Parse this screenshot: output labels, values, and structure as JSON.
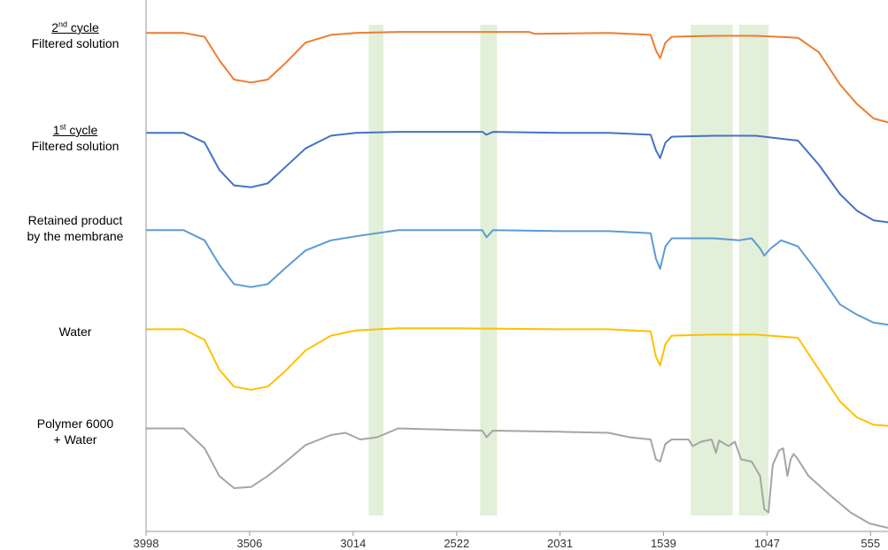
{
  "chart_data": {
    "type": "line",
    "x_ticks": [
      "3998",
      "3506",
      "3014",
      "2522",
      "2031",
      "1539",
      "1047",
      "555"
    ],
    "xlim": [
      3998,
      472
    ],
    "labels": [
      {
        "line1_num": "2",
        "line1_sup": "nd",
        "line1_rest": " cycle",
        "line2": "Filtered solution"
      },
      {
        "line1_num": "1",
        "line1_sup": "st",
        "line1_rest": " cycle",
        "line2": "Filtered solution"
      },
      {
        "line1": "Retained product",
        "line2": "by the membrane"
      },
      {
        "line1": "Water"
      },
      {
        "line1": "Polymer 6000",
        "line2": "+ Water"
      }
    ],
    "highlight_bands": [
      [
        2940,
        2870
      ],
      [
        2410,
        2330
      ],
      [
        1410,
        1210
      ],
      [
        1180,
        1040
      ]
    ],
    "highlight_color": "#e2efd9",
    "series": [
      {
        "color": "#ed7d31",
        "points": [
          [
            3998,
            0.02
          ],
          [
            3820,
            0.02
          ],
          [
            3720,
            0.06
          ],
          [
            3650,
            0.3
          ],
          [
            3580,
            0.5
          ],
          [
            3500,
            0.53
          ],
          [
            3420,
            0.5
          ],
          [
            3340,
            0.34
          ],
          [
            3240,
            0.12
          ],
          [
            3120,
            0.04
          ],
          [
            3000,
            0.02
          ],
          [
            2800,
            0.01
          ],
          [
            2522,
            0.01
          ],
          [
            2180,
            0.01
          ],
          [
            2150,
            0.03
          ],
          [
            1800,
            0.02
          ],
          [
            1600,
            0.04
          ],
          [
            1575,
            0.2
          ],
          [
            1555,
            0.28
          ],
          [
            1530,
            0.12
          ],
          [
            1500,
            0.06
          ],
          [
            1300,
            0.05
          ],
          [
            1100,
            0.05
          ],
          [
            900,
            0.07
          ],
          [
            800,
            0.22
          ],
          [
            700,
            0.55
          ],
          [
            620,
            0.75
          ],
          [
            540,
            0.9
          ],
          [
            472,
            0.94
          ]
        ]
      },
      {
        "color": "#4472c4",
        "points": [
          [
            3998,
            0.02
          ],
          [
            3820,
            0.02
          ],
          [
            3720,
            0.12
          ],
          [
            3650,
            0.4
          ],
          [
            3580,
            0.56
          ],
          [
            3500,
            0.58
          ],
          [
            3420,
            0.54
          ],
          [
            3340,
            0.38
          ],
          [
            3240,
            0.18
          ],
          [
            3120,
            0.05
          ],
          [
            3000,
            0.02
          ],
          [
            2800,
            0.01
          ],
          [
            2400,
            0.01
          ],
          [
            2380,
            0.04
          ],
          [
            2350,
            0.01
          ],
          [
            2031,
            0.02
          ],
          [
            1800,
            0.02
          ],
          [
            1600,
            0.04
          ],
          [
            1575,
            0.2
          ],
          [
            1555,
            0.28
          ],
          [
            1530,
            0.12
          ],
          [
            1500,
            0.06
          ],
          [
            1300,
            0.05
          ],
          [
            1100,
            0.05
          ],
          [
            900,
            0.1
          ],
          [
            800,
            0.35
          ],
          [
            700,
            0.65
          ],
          [
            620,
            0.82
          ],
          [
            540,
            0.92
          ],
          [
            472,
            0.94
          ]
        ]
      },
      {
        "color": "#5b9bd5",
        "points": [
          [
            3998,
            0.02
          ],
          [
            3820,
            0.02
          ],
          [
            3720,
            0.12
          ],
          [
            3650,
            0.36
          ],
          [
            3580,
            0.55
          ],
          [
            3500,
            0.58
          ],
          [
            3420,
            0.55
          ],
          [
            3340,
            0.4
          ],
          [
            3240,
            0.22
          ],
          [
            3120,
            0.12
          ],
          [
            3000,
            0.08
          ],
          [
            2800,
            0.02
          ],
          [
            2522,
            0.02
          ],
          [
            2400,
            0.02
          ],
          [
            2380,
            0.09
          ],
          [
            2350,
            0.02
          ],
          [
            2031,
            0.03
          ],
          [
            1800,
            0.03
          ],
          [
            1600,
            0.05
          ],
          [
            1575,
            0.3
          ],
          [
            1555,
            0.4
          ],
          [
            1530,
            0.18
          ],
          [
            1500,
            0.1
          ],
          [
            1300,
            0.1
          ],
          [
            1180,
            0.12
          ],
          [
            1120,
            0.1
          ],
          [
            1080,
            0.2
          ],
          [
            1060,
            0.27
          ],
          [
            1030,
            0.2
          ],
          [
            980,
            0.12
          ],
          [
            900,
            0.18
          ],
          [
            800,
            0.45
          ],
          [
            700,
            0.75
          ],
          [
            620,
            0.85
          ],
          [
            540,
            0.93
          ],
          [
            472,
            0.95
          ]
        ]
      },
      {
        "color": "#ffc000",
        "points": [
          [
            3998,
            0.02
          ],
          [
            3820,
            0.02
          ],
          [
            3720,
            0.12
          ],
          [
            3650,
            0.4
          ],
          [
            3580,
            0.56
          ],
          [
            3500,
            0.59
          ],
          [
            3420,
            0.56
          ],
          [
            3340,
            0.42
          ],
          [
            3240,
            0.22
          ],
          [
            3120,
            0.08
          ],
          [
            3000,
            0.03
          ],
          [
            2800,
            0.01
          ],
          [
            2522,
            0.01
          ],
          [
            2031,
            0.02
          ],
          [
            1800,
            0.02
          ],
          [
            1600,
            0.04
          ],
          [
            1575,
            0.28
          ],
          [
            1555,
            0.36
          ],
          [
            1530,
            0.16
          ],
          [
            1500,
            0.08
          ],
          [
            1300,
            0.07
          ],
          [
            1100,
            0.07
          ],
          [
            900,
            0.1
          ],
          [
            800,
            0.4
          ],
          [
            700,
            0.7
          ],
          [
            620,
            0.85
          ],
          [
            540,
            0.92
          ],
          [
            472,
            0.93
          ]
        ]
      },
      {
        "color": "#a5a5a5",
        "points": [
          [
            3998,
            0.02
          ],
          [
            3820,
            0.02
          ],
          [
            3720,
            0.2
          ],
          [
            3650,
            0.45
          ],
          [
            3580,
            0.56
          ],
          [
            3500,
            0.55
          ],
          [
            3420,
            0.45
          ],
          [
            3340,
            0.33
          ],
          [
            3240,
            0.17
          ],
          [
            3120,
            0.08
          ],
          [
            3050,
            0.06
          ],
          [
            2980,
            0.12
          ],
          [
            2900,
            0.1
          ],
          [
            2800,
            0.02
          ],
          [
            2600,
            0.03
          ],
          [
            2400,
            0.04
          ],
          [
            2380,
            0.1
          ],
          [
            2350,
            0.04
          ],
          [
            2031,
            0.05
          ],
          [
            1800,
            0.06
          ],
          [
            1700,
            0.1
          ],
          [
            1600,
            0.12
          ],
          [
            1575,
            0.3
          ],
          [
            1555,
            0.32
          ],
          [
            1530,
            0.16
          ],
          [
            1500,
            0.12
          ],
          [
            1420,
            0.12
          ],
          [
            1400,
            0.18
          ],
          [
            1360,
            0.14
          ],
          [
            1310,
            0.12
          ],
          [
            1290,
            0.24
          ],
          [
            1275,
            0.13
          ],
          [
            1230,
            0.18
          ],
          [
            1200,
            0.14
          ],
          [
            1170,
            0.3
          ],
          [
            1120,
            0.32
          ],
          [
            1080,
            0.45
          ],
          [
            1060,
            0.75
          ],
          [
            1040,
            0.78
          ],
          [
            1020,
            0.35
          ],
          [
            990,
            0.22
          ],
          [
            970,
            0.2
          ],
          [
            950,
            0.45
          ],
          [
            935,
            0.3
          ],
          [
            920,
            0.25
          ],
          [
            900,
            0.3
          ],
          [
            850,
            0.45
          ],
          [
            750,
            0.62
          ],
          [
            650,
            0.78
          ],
          [
            560,
            0.88
          ],
          [
            472,
            0.92
          ]
        ]
      }
    ]
  }
}
